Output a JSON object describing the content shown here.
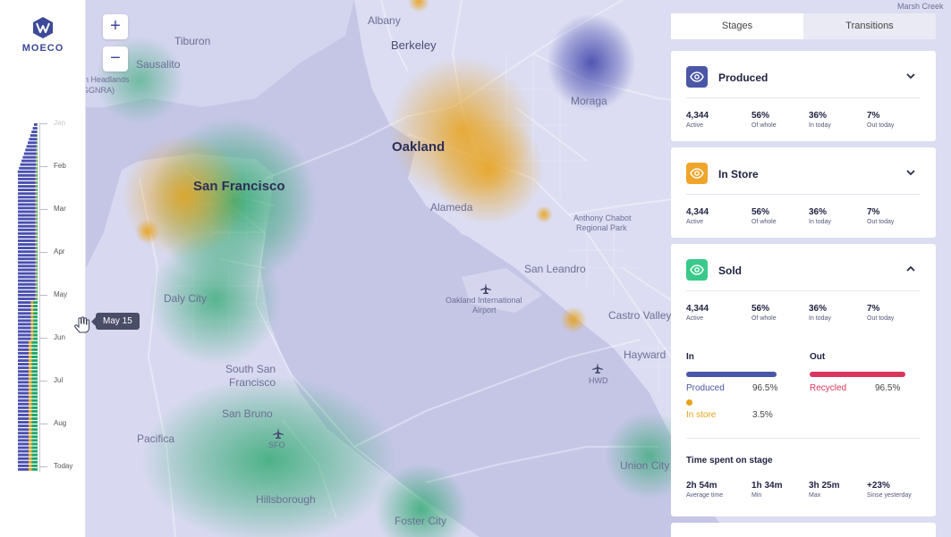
{
  "brand": {
    "name": "MOECO"
  },
  "timeline": {
    "months": [
      "Jan",
      "Feb",
      "Mar",
      "Apr",
      "May",
      "Jun",
      "Jul",
      "Aug",
      "Today"
    ],
    "tooltip": "May 15"
  },
  "map": {
    "places": [
      "Albany",
      "Berkeley",
      "Tiburon",
      "Sausalito",
      "n Headlands",
      "GGNRA)",
      "Oakland",
      "San Francisco",
      "Alameda",
      "Moraga",
      "Anthony Chabot",
      "Regional Park",
      "San Leandro",
      "Daly City",
      "Oakland International",
      "Airport",
      "Castro Valley",
      "Hayward",
      "South San",
      "Francisco",
      "HWD",
      "San Bruno",
      "SFO",
      "Pacifica",
      "Union City",
      "Hillsborough",
      "Foster City",
      "Marsh Creek"
    ],
    "zoom_in": "+",
    "zoom_out": "−",
    "colors": {
      "produced": "#4a4fb0",
      "in_store": "#e8a21a",
      "sold": "#1fa565"
    }
  },
  "panel": {
    "tabs": [
      "Stages",
      "Transitions"
    ],
    "active_tab": "Stages",
    "stages": [
      {
        "title": "Produced",
        "icon": "eye-icon",
        "color": "#4a56a6",
        "expanded": false,
        "stats": [
          {
            "value": "4,344",
            "label": "Active"
          },
          {
            "value": "56%",
            "label": "Of whole"
          },
          {
            "value": "36%",
            "label": "In today"
          },
          {
            "value": "7%",
            "label": "Out today"
          }
        ]
      },
      {
        "title": "In Store",
        "icon": "eye-icon",
        "color": "#f0a52a",
        "expanded": false,
        "stats": [
          {
            "value": "4,344",
            "label": "Active"
          },
          {
            "value": "56%",
            "label": "Of whole"
          },
          {
            "value": "36%",
            "label": "In today"
          },
          {
            "value": "7%",
            "label": "Out today"
          }
        ]
      },
      {
        "title": "Sold",
        "icon": "eye-icon",
        "color": "#3ac98b",
        "expanded": true,
        "stats": [
          {
            "value": "4,344",
            "label": "Active"
          },
          {
            "value": "56%",
            "label": "Of whole"
          },
          {
            "value": "36%",
            "label": "In today"
          },
          {
            "value": "7%",
            "label": "Out today"
          }
        ],
        "in_heading": "In",
        "out_heading": "Out",
        "in_flows": [
          {
            "label": "Produced",
            "value": "96.5%",
            "color": "#4a56a6",
            "fraction": 0.965
          },
          {
            "label": "In store",
            "value": "3.5%",
            "color": "#e8a21a",
            "fraction": 0.035
          }
        ],
        "out_flows": [
          {
            "label": "Recycled",
            "value": "96.5%",
            "color": "#d9365f",
            "fraction": 0.965
          }
        ],
        "time_heading": "Time spent on stage",
        "times": [
          {
            "value": "2h 54m",
            "label": "Average time"
          },
          {
            "value": "1h 34m",
            "label": "Min"
          },
          {
            "value": "3h 25m",
            "label": "Max"
          },
          {
            "value": "+23%",
            "label": "Sinse yesterday"
          }
        ]
      }
    ]
  }
}
